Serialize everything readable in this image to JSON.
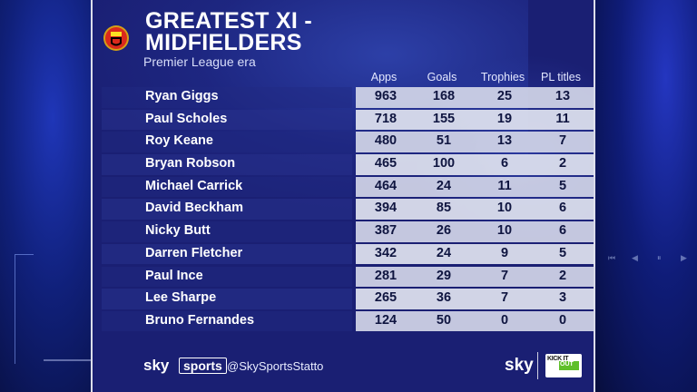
{
  "title": {
    "line1": "GREATEST XI -",
    "line2": "MIDFIELDERS"
  },
  "subtitle": "Premier League era",
  "columns": [
    "Apps",
    "Goals",
    "Trophies",
    "PL titles"
  ],
  "rows": [
    {
      "name": "Ryan Giggs",
      "values": [
        "963",
        "168",
        "25",
        "13"
      ]
    },
    {
      "name": "Paul Scholes",
      "values": [
        "718",
        "155",
        "19",
        "11"
      ]
    },
    {
      "name": "Roy Keane",
      "values": [
        "480",
        "51",
        "13",
        "7"
      ]
    },
    {
      "name": "Bryan Robson",
      "values": [
        "465",
        "100",
        "6",
        "2"
      ]
    },
    {
      "name": "Michael Carrick",
      "values": [
        "464",
        "24",
        "11",
        "5"
      ]
    },
    {
      "name": "David Beckham",
      "values": [
        "394",
        "85",
        "10",
        "6"
      ]
    },
    {
      "name": "Nicky Butt",
      "values": [
        "387",
        "26",
        "10",
        "6"
      ]
    },
    {
      "name": "Darren Fletcher",
      "values": [
        "342",
        "24",
        "9",
        "5"
      ]
    },
    {
      "name": "Paul Ince",
      "values": [
        "281",
        "29",
        "7",
        "2"
      ]
    },
    {
      "name": "Lee Sharpe",
      "values": [
        "265",
        "36",
        "7",
        "3"
      ]
    },
    {
      "name": "Bruno Fernandes",
      "values": [
        "124",
        "50",
        "0",
        "0"
      ]
    }
  ],
  "footer": {
    "brand_sky": "sky",
    "brand_sports": "sports",
    "handle": "@SkySportsStatto",
    "sky_logo": "sky",
    "kickitout_line1": "KICK IT",
    "kickitout_line2": "OUT"
  },
  "media_controls": [
    "⏮",
    "◀",
    "⏸",
    "▶"
  ],
  "colors": {
    "panel": "#1a1f73",
    "name_cell": "#222a82",
    "value_cell": "#d2d6e8",
    "kickitout_green": "#5fbf2a"
  },
  "icons": {
    "crest": "manchester-united-crest-icon"
  }
}
